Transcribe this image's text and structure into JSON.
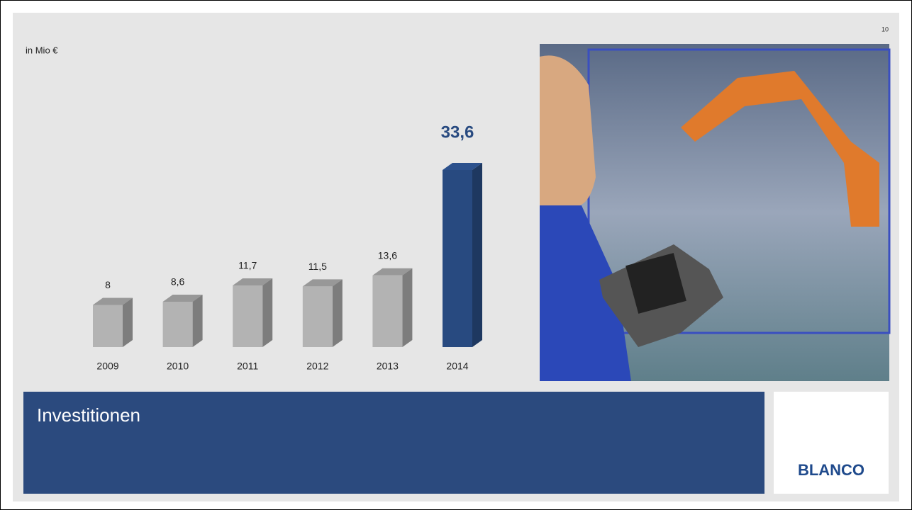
{
  "page_number": "10",
  "chart_data": {
    "type": "bar3d",
    "unit_label": "in Mio €",
    "categories": [
      "2009",
      "2010",
      "2011",
      "2012",
      "2013",
      "2014"
    ],
    "values": [
      8,
      8.6,
      11.7,
      11.5,
      13.6,
      33.6
    ],
    "value_labels": [
      "8",
      "8,6",
      "11,7",
      "11,5",
      "13,6",
      "33,6"
    ],
    "color": "#b3b3b3",
    "highlight": "2014",
    "highlight_color": "#284a80"
  },
  "banner": {
    "title": "Investitionen"
  },
  "logo": {
    "text": "BLANCO"
  }
}
